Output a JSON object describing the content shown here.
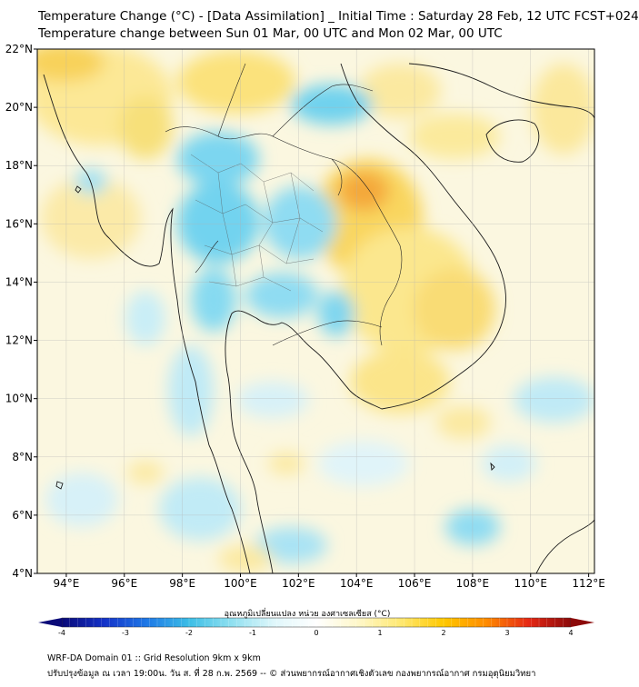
{
  "header": {
    "title_line1": "Temperature Change (°C) - [Data Assimilation] _ Initial Time : Saturday 28 Feb, 12 UTC FCST+024",
    "title_line2": "Temperature change between Sun 01 Mar, 00 UTC and Mon 02 Mar, 00 UTC"
  },
  "map": {
    "lat_labels": [
      "22°N",
      "20°N",
      "18°N",
      "16°N",
      "14°N",
      "12°N",
      "10°N",
      "8°N",
      "6°N",
      "4°N"
    ],
    "lon_labels": [
      "94°E",
      "96°E",
      "98°E",
      "100°E",
      "102°E",
      "104°E",
      "106°E",
      "108°E",
      "110°E",
      "112°E"
    ],
    "lat_range": [
      4,
      22
    ],
    "lon_range": [
      93,
      112.2
    ]
  },
  "colorbar": {
    "label": "อุณหภูมิเปลี่ยนแปลง หน่วย องศาเซลเซียส (°C)",
    "ticks": [
      "-4",
      "-3",
      "-2",
      "-1",
      "0",
      "1",
      "2",
      "3",
      "4"
    ],
    "range": [
      -4,
      4
    ],
    "colors": [
      "#0a0a78",
      "#1432c8",
      "#1e78e6",
      "#3cbee6",
      "#8fe0f0",
      "#dff7fb",
      "#ffffff",
      "#fff7c8",
      "#ffe870",
      "#ffc800",
      "#ff8c00",
      "#e62814",
      "#8c0a0a"
    ]
  },
  "footer": {
    "line1": "WRF-DA Domain 01 :: Grid Resolution 9km x 9km",
    "line2": "ปรับปรุงข้อมูล ณ เวลา 19:00น. วัน ส. ที่ 28 ก.พ. 2569 -- © ส่วนพยากรณ์อากาศเชิงตัวเลข กองพยากรณ์อากาศ กรมอุตุนิยมวิทยา"
  }
}
